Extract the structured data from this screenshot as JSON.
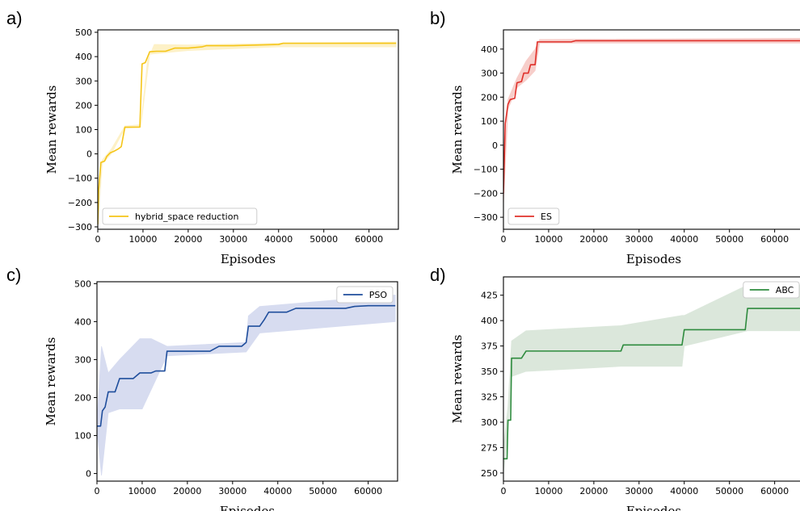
{
  "chart_data": [
    {
      "panel": "a)",
      "type": "line",
      "xlabel": "Episodes",
      "ylabel": "Mean rewards",
      "xlim": [
        0,
        66500
      ],
      "ylim": [
        -310,
        510
      ],
      "xticks": [
        0,
        10000,
        20000,
        30000,
        40000,
        50000,
        60000
      ],
      "yticks": [
        -300,
        -200,
        -100,
        0,
        100,
        200,
        300,
        400,
        500
      ],
      "legend": "bottom-left",
      "series": [
        {
          "name": "hybrid_space reduction",
          "color": "#f5c518",
          "band_color": "#fdf0c2",
          "points": [
            [
              0,
              -290
            ],
            [
              200,
              -150
            ],
            [
              700,
              -35
            ],
            [
              1500,
              -30
            ],
            [
              2000,
              -10
            ],
            [
              2800,
              5
            ],
            [
              3500,
              10
            ],
            [
              4500,
              20
            ],
            [
              5200,
              30
            ],
            [
              6000,
              110
            ],
            [
              8000,
              110
            ],
            [
              9300,
              110
            ],
            [
              9800,
              370
            ],
            [
              10500,
              375
            ],
            [
              11500,
              420
            ],
            [
              13000,
              422
            ],
            [
              15000,
              422
            ],
            [
              17000,
              435
            ],
            [
              20000,
              435
            ],
            [
              23000,
              440
            ],
            [
              24000,
              445
            ],
            [
              30000,
              445
            ],
            [
              40000,
              450
            ],
            [
              41000,
              455
            ],
            [
              66000,
              455
            ]
          ],
          "band_lower": [
            [
              0,
              -300
            ],
            [
              1000,
              -40
            ],
            [
              3000,
              0
            ],
            [
              6000,
              105
            ],
            [
              9500,
              110
            ],
            [
              11500,
              410
            ],
            [
              20000,
              425
            ],
            [
              40000,
              440
            ],
            [
              66000,
              440
            ]
          ],
          "band_upper": [
            [
              0,
              -270
            ],
            [
              1000,
              -25
            ],
            [
              3000,
              20
            ],
            [
              6000,
              115
            ],
            [
              9500,
              120
            ],
            [
              11000,
              385
            ],
            [
              12500,
              450
            ],
            [
              20000,
              448
            ],
            [
              40000,
              455
            ],
            [
              66000,
              460
            ]
          ]
        }
      ]
    },
    {
      "panel": "b)",
      "type": "line",
      "xlabel": "Episodes",
      "ylabel": "Mean rewards",
      "xlim": [
        0,
        66500
      ],
      "ylim": [
        -350,
        480
      ],
      "xticks": [
        0,
        10000,
        20000,
        30000,
        40000,
        50000,
        60000
      ],
      "yticks": [
        -300,
        -200,
        -100,
        0,
        100,
        200,
        300,
        400
      ],
      "legend": "bottom-left",
      "series": [
        {
          "name": "ES",
          "color": "#e0302a",
          "band_color": "#f7c9c5",
          "points": [
            [
              0,
              -200
            ],
            [
              400,
              90
            ],
            [
              1000,
              170
            ],
            [
              1500,
              190
            ],
            [
              2500,
              195
            ],
            [
              3000,
              260
            ],
            [
              4000,
              265
            ],
            [
              4500,
              300
            ],
            [
              5500,
              300
            ],
            [
              6000,
              335
            ],
            [
              7000,
              335
            ],
            [
              7500,
              430
            ],
            [
              10000,
              430
            ],
            [
              15000,
              430
            ],
            [
              16000,
              435
            ],
            [
              40000,
              435
            ],
            [
              66000,
              435
            ]
          ],
          "band_lower": [
            [
              0,
              -250
            ],
            [
              1000,
              150
            ],
            [
              3000,
              240
            ],
            [
              5000,
              270
            ],
            [
              7000,
              310
            ],
            [
              8000,
              425
            ],
            [
              66000,
              425
            ]
          ],
          "band_upper": [
            [
              0,
              -150
            ],
            [
              1000,
              190
            ],
            [
              3000,
              280
            ],
            [
              5000,
              350
            ],
            [
              7000,
              400
            ],
            [
              8000,
              440
            ],
            [
              66000,
              445
            ]
          ]
        }
      ]
    },
    {
      "panel": "c)",
      "type": "line",
      "xlabel": "Episodes",
      "ylabel": "Mean rewards",
      "xlim": [
        0,
        66500
      ],
      "ylim": [
        -20,
        505
      ],
      "xticks": [
        0,
        10000,
        20000,
        30000,
        40000,
        50000,
        60000
      ],
      "yticks": [
        0,
        100,
        200,
        300,
        400,
        500
      ],
      "legend": "top-right",
      "series": [
        {
          "name": "PSO",
          "color": "#1f4e9c",
          "band_color": "#d3d9ef",
          "points": [
            [
              0,
              125
            ],
            [
              800,
              125
            ],
            [
              1200,
              165
            ],
            [
              1800,
              175
            ],
            [
              2500,
              215
            ],
            [
              4000,
              215
            ],
            [
              5000,
              250
            ],
            [
              8000,
              250
            ],
            [
              9500,
              265
            ],
            [
              12000,
              265
            ],
            [
              13000,
              270
            ],
            [
              15000,
              270
            ],
            [
              15500,
              322
            ],
            [
              25000,
              322
            ],
            [
              27000,
              335
            ],
            [
              32000,
              335
            ],
            [
              33000,
              345
            ],
            [
              33500,
              388
            ],
            [
              36000,
              388
            ],
            [
              37000,
              405
            ],
            [
              38000,
              425
            ],
            [
              42000,
              425
            ],
            [
              44000,
              435
            ],
            [
              55000,
              435
            ],
            [
              57000,
              440
            ],
            [
              60000,
              442
            ],
            [
              66000,
              442
            ]
          ],
          "band_lower": [
            [
              0,
              115
            ],
            [
              1000,
              -5
            ],
            [
              2500,
              160
            ],
            [
              5000,
              170
            ],
            [
              10000,
              170
            ],
            [
              15500,
              310
            ],
            [
              33000,
              320
            ],
            [
              36000,
              370
            ],
            [
              66000,
              400
            ]
          ],
          "band_upper": [
            [
              0,
              135
            ],
            [
              1000,
              335
            ],
            [
              2500,
              265
            ],
            [
              5000,
              300
            ],
            [
              9500,
              355
            ],
            [
              12000,
              355
            ],
            [
              15500,
              335
            ],
            [
              33000,
              345
            ],
            [
              33500,
              415
            ],
            [
              36000,
              440
            ],
            [
              66000,
              470
            ]
          ]
        }
      ]
    },
    {
      "panel": "d)",
      "type": "line",
      "xlabel": "Episodes",
      "ylabel": "Mean rewards",
      "xlim": [
        0,
        66500
      ],
      "ylim": [
        242,
        443
      ],
      "xticks": [
        0,
        10000,
        20000,
        30000,
        40000,
        50000,
        60000
      ],
      "yticks": [
        250,
        275,
        300,
        325,
        350,
        375,
        400,
        425
      ],
      "legend": "top-right",
      "series": [
        {
          "name": "ABC",
          "color": "#2e8b3e",
          "band_color": "#d8e5d8",
          "points": [
            [
              0,
              264
            ],
            [
              800,
              264
            ],
            [
              1000,
              302
            ],
            [
              1600,
              302
            ],
            [
              1800,
              363
            ],
            [
              4000,
              363
            ],
            [
              5000,
              370
            ],
            [
              26000,
              370
            ],
            [
              26500,
              376
            ],
            [
              39500,
              376
            ],
            [
              40000,
              391
            ],
            [
              53500,
              391
            ],
            [
              54000,
              412
            ],
            [
              66500,
              412
            ]
          ],
          "band_lower": [
            [
              0,
              250
            ],
            [
              1000,
              290
            ],
            [
              1800,
              345
            ],
            [
              5000,
              350
            ],
            [
              26000,
              355
            ],
            [
              39500,
              355
            ],
            [
              40000,
              375
            ],
            [
              54000,
              390
            ],
            [
              66500,
              390
            ]
          ],
          "band_upper": [
            [
              0,
              275
            ],
            [
              1000,
              315
            ],
            [
              1800,
              380
            ],
            [
              5000,
              390
            ],
            [
              26000,
              395
            ],
            [
              39500,
              405
            ],
            [
              40000,
              405
            ],
            [
              54000,
              435
            ],
            [
              66500,
              435
            ]
          ]
        }
      ]
    }
  ]
}
